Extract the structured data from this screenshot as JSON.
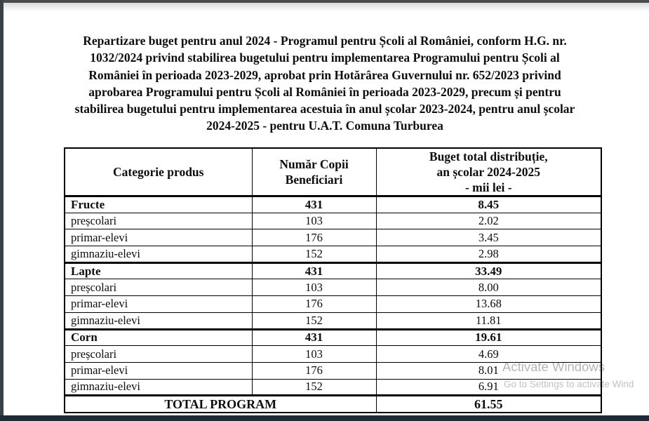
{
  "document": {
    "title": "Repartizare buget pentru anul 2024 - Programul pentru Școli al României, conform H.G. nr. 1032/2024 privind stabilirea bugetului pentru implementarea Programului pentru Școli al României în perioada 2023-2029, aprobat prin Hotărârea Guvernului nr. 652/2023 privind aprobarea Programului pentru Școli al României în perioada 2023-2029, precum și pentru stabilirea bugetului pentru implementarea acestuia în anul școlar 2023-2024, pentru anul școlar 2024-2025 - pentru U.A.T. Comuna Turburea"
  },
  "table": {
    "headers": {
      "category": "Categorie produs",
      "beneficiaries": "Număr Copii\nBeneficiari",
      "budget": "Buget total distribuție,\nan școlar 2024-2025\n- mii lei -"
    },
    "rows": [
      {
        "label": "Fructe",
        "count": "431",
        "budget": "8.45"
      },
      {
        "label": "preșcolari",
        "count": "103",
        "budget": "2.02"
      },
      {
        "label": "primar-elevi",
        "count": "176",
        "budget": "3.45"
      },
      {
        "label": "gimnaziu-elevi",
        "count": "152",
        "budget": "2.98"
      },
      {
        "label": "Lapte",
        "count": "431",
        "budget": "33.49"
      },
      {
        "label": "preșcolari",
        "count": "103",
        "budget": "8.00"
      },
      {
        "label": "primar-elevi",
        "count": "176",
        "budget": "13.68"
      },
      {
        "label": "gimnaziu-elevi",
        "count": "152",
        "budget": "11.81"
      },
      {
        "label": "Corn",
        "count": "431",
        "budget": "19.61"
      },
      {
        "label": "preșcolari",
        "count": "103",
        "budget": "4.69"
      },
      {
        "label": "primar-elevi",
        "count": "176",
        "budget": "8.01"
      },
      {
        "label": "gimnaziu-elevi",
        "count": "152",
        "budget": "6.91"
      }
    ],
    "total": {
      "label": "TOTAL PROGRAM",
      "value": "61.55"
    }
  },
  "watermark": {
    "title": "Activate Windows",
    "subtitle": "Go to Settings to activate Wind"
  },
  "colors": {
    "table_border": "#000000",
    "watermark": "#b3b7ba",
    "bottom_bar": "#1e2a36",
    "left_edge": "#3c4146",
    "top_edge": "#4a4d50"
  }
}
